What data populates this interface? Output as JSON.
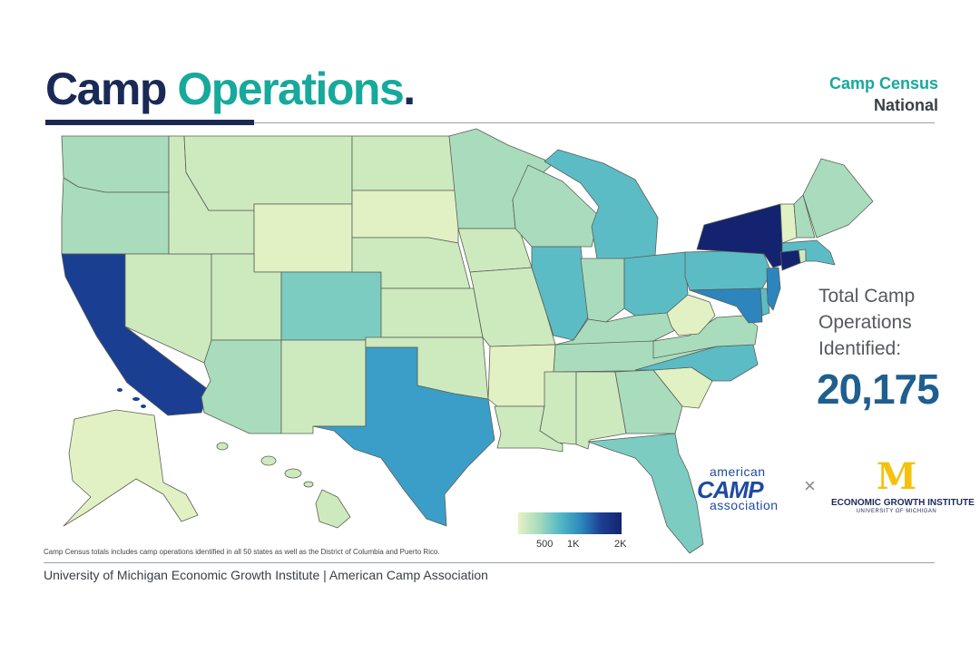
{
  "header": {
    "title_part1": "Camp",
    "title_part2": "Operations",
    "title_part3": ".",
    "subtitle_line1": "Camp Census",
    "subtitle_line2": "National"
  },
  "stats": {
    "total_label": "Total Camp Operations Identified:",
    "total_value": "20,175"
  },
  "legend": {
    "ticks": [
      "500",
      "1K",
      "2K"
    ],
    "colors": [
      "#e6f2c4",
      "#a6dbbd",
      "#56b9c4",
      "#2d8bbe",
      "#1d3f94",
      "#14256f"
    ]
  },
  "map": {
    "region_colors": {
      "pale": "#e2f1c3",
      "light": "#cdeabf",
      "mint": "#a9dcbc",
      "teal_light": "#7cccc2",
      "teal": "#5cbcc6",
      "blue_mid": "#3b9ec8",
      "blue": "#2c86bd",
      "navy": "#1a3e92",
      "navy_dark": "#13236f"
    }
  },
  "footnote": "Camp Census totals includes camp operations identified in all 50 states as well as the District of Columbia and Puerto Rico.",
  "footer": "University of Michigan Economic Growth Institute  |  American Camp Association",
  "logos": {
    "aca_line1": "american",
    "aca_line2": "CAMP",
    "aca_line3": "association",
    "times": "×",
    "egi_mark": "M",
    "egi_name": "ECONOMIC GROWTH INSTITUTE",
    "egi_univ": "UNIVERSITY OF MICHIGAN"
  }
}
